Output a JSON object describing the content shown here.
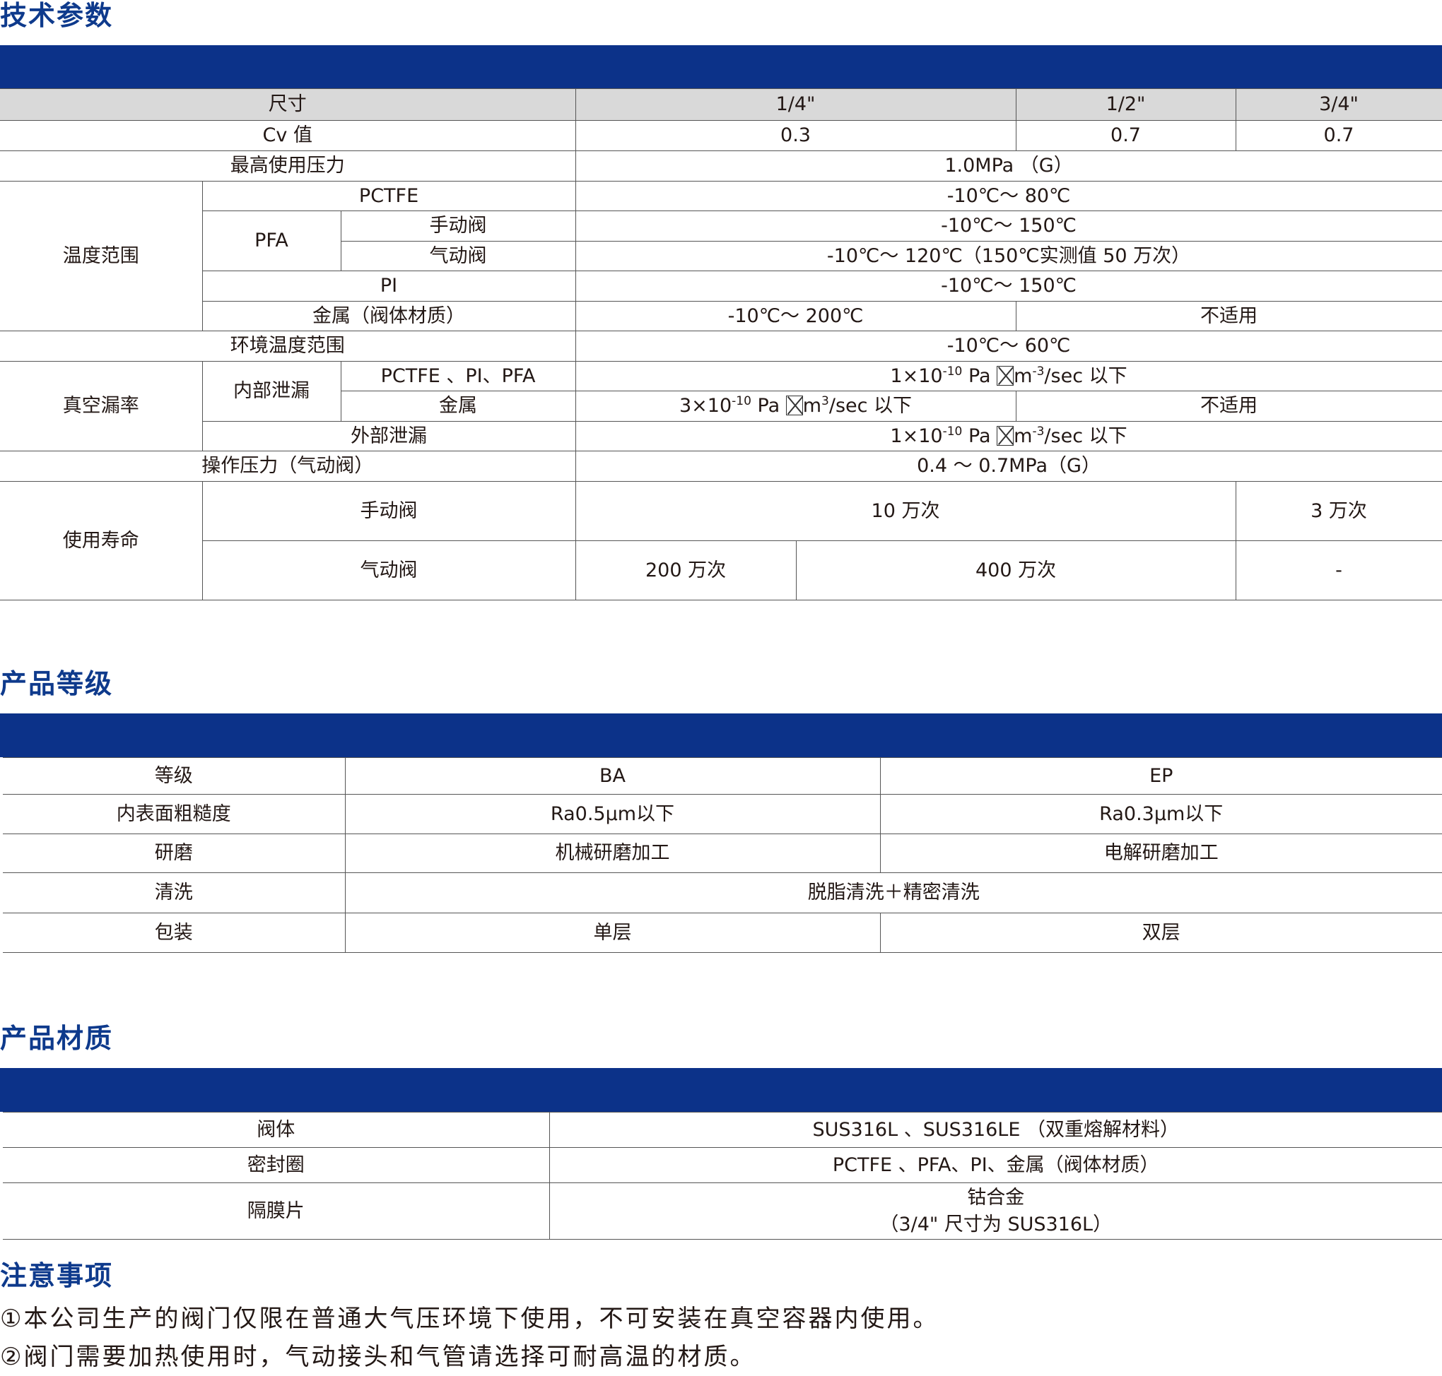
{
  "sections": {
    "tech": "技术参数",
    "grade": "产品等级",
    "material": "产品材质",
    "notes": "注意事项"
  },
  "tech": {
    "size_label": "尺寸",
    "sizes": [
      "1/4\"",
      "1/2\"",
      "3/4\""
    ],
    "cv_label": "Cv 值",
    "cv_values": [
      "0.3",
      "0.7",
      "0.7"
    ],
    "max_pressure_label": "最高使用压力",
    "max_pressure": "1.0MPa （G）",
    "temp_label": "温度范围",
    "pctfe": "PCTFE",
    "pctfe_temp": "-10℃～ 80℃",
    "pfa": "PFA",
    "manual": "手动阀",
    "pfa_manual_temp": "-10℃～ 150℃",
    "pneumatic": "气动阀",
    "pfa_pneumatic_temp": "-10℃～ 120℃（150℃实测值 50 万次）",
    "pi": "PI",
    "pi_temp": "-10℃～ 150℃",
    "metal_body": "金属（阀体材质）",
    "metal_temp": "-10℃～ 200℃",
    "not_applicable": "不适用",
    "ambient_label": "环境温度范围",
    "ambient_temp": "-10℃～ 60℃",
    "vacuum_label": "真空漏率",
    "internal_leak": "内部泄漏",
    "pctfe_pi_pfa": "PCTFE 、PI、PFA",
    "leak_a_pre": "1×10",
    "leak_exp": "-10",
    "leak_a_mid": " Pa ",
    "leak_a_post": "m",
    "leak_a_exp2": "-3",
    "leak_a_tail": "/sec  以下",
    "metal": "金属",
    "leak_b_pre": "3×10",
    "leak_b_post": "m",
    "leak_b_exp2": "3",
    "leak_b_tail": "/sec  以下",
    "external_leak": "外部泄漏",
    "op_pressure_label": "操作压力（气动阀）",
    "op_pressure": "0.4 ～ 0.7MPa（G）",
    "life_label": "使用寿命",
    "life_manual_a": "10 万次",
    "life_manual_b": "3 万次",
    "life_pneu_a": "200 万次",
    "life_pneu_b": "400 万次",
    "life_pneu_c": "-"
  },
  "grade": {
    "rows": [
      {
        "label": "等级",
        "ba": "BA",
        "ep": "EP"
      },
      {
        "label": "内表面粗糙度",
        "ba": "Ra0.5μm以下",
        "ep": "Ra0.3μm以下"
      },
      {
        "label": "研磨",
        "ba": "机械研磨加工",
        "ep": "电解研磨加工"
      }
    ],
    "clean_label": "清洗",
    "clean_value": "脱脂清洗＋精密清洗",
    "pack_label": "包装",
    "pack_ba": "单层",
    "pack_ep": "双层"
  },
  "material": {
    "body_label": "阀体",
    "body_value": "SUS316L 、SUS316LE （双重熔解材料）",
    "seal_label": "密封圈",
    "seal_value": "PCTFE 、PFA、PI、金属（阀体材质）",
    "diaphragm_label": "隔膜片",
    "diaphragm_line1": "钴合金",
    "diaphragm_line2": "（3/4\" 尺寸为  SUS316L）"
  },
  "notes": [
    "①本公司生产的阀门仅限在普通大气压环境下使用，不可安装在真空容器内使用。",
    "②阀门需要加热使用时，气动接头和气管请选择可耐高温的材质。"
  ]
}
